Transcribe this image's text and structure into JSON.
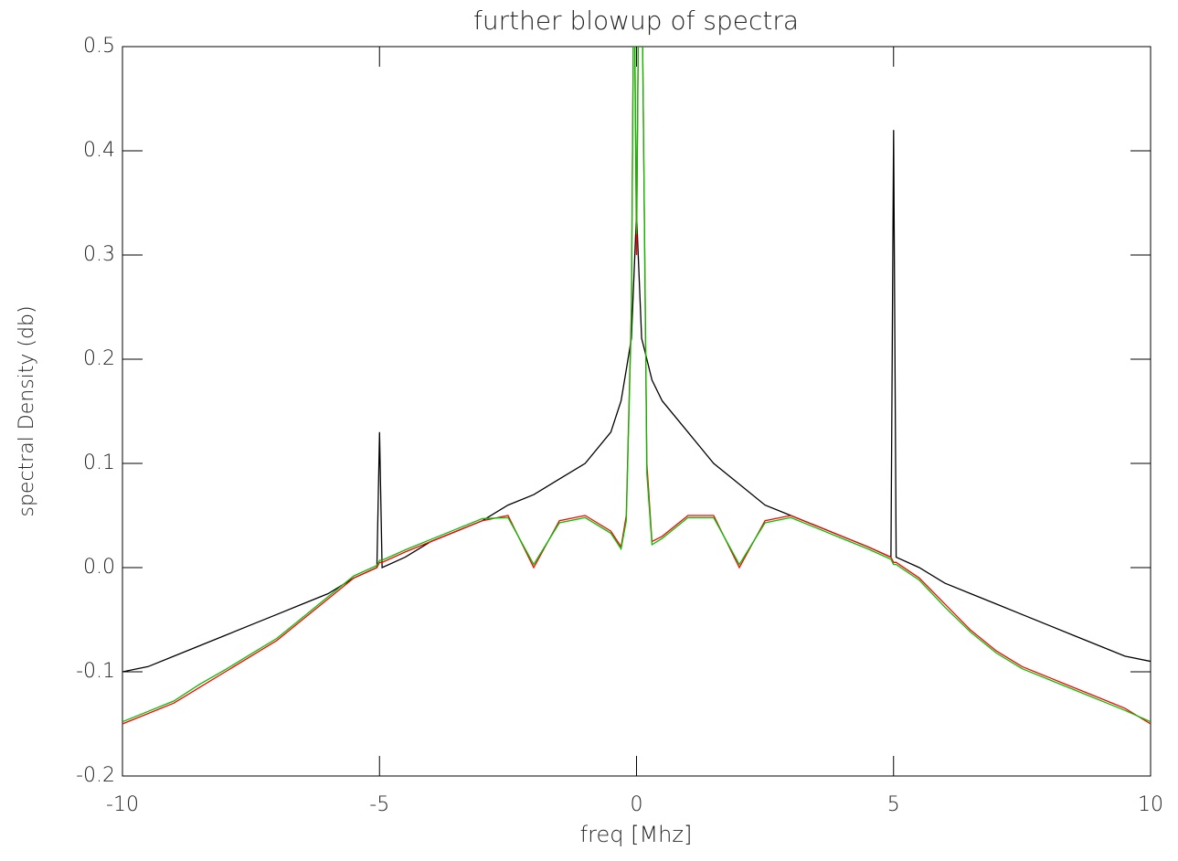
{
  "chart_data": {
    "type": "line",
    "title": "further blowup of spectra",
    "x_label": "freq [Mhz]",
    "y_label": "spectral Density (db)",
    "x": [
      -10,
      -9.5,
      -9,
      -8.5,
      -8,
      -7.5,
      -7,
      -6.5,
      -6,
      -5.5,
      -5.05,
      -5,
      -4.95,
      -4.5,
      -4,
      -3.5,
      -3,
      -2.5,
      -2,
      -1.5,
      -1,
      -0.5,
      -0.3,
      -0.2,
      -0.1,
      -0.05,
      0,
      0.05,
      0.1,
      0.2,
      0.3,
      0.5,
      1,
      1.5,
      2,
      2.5,
      3,
      3.5,
      4,
      4.5,
      4.95,
      5,
      5.05,
      5.5,
      6,
      6.5,
      7,
      7.5,
      8,
      8.5,
      9,
      9.5,
      10
    ],
    "series": [
      {
        "color": "#000000",
        "values": [
          -0.1,
          -0.095,
          -0.085,
          -0.075,
          -0.065,
          -0.055,
          -0.045,
          -0.035,
          -0.025,
          -0.01,
          0.0,
          0.13,
          0.0,
          0.01,
          0.025,
          0.035,
          0.045,
          0.06,
          0.07,
          0.085,
          0.1,
          0.13,
          0.16,
          0.19,
          0.22,
          0.28,
          0.34,
          0.28,
          0.22,
          0.2,
          0.18,
          0.16,
          0.13,
          0.1,
          0.08,
          0.06,
          0.05,
          0.04,
          0.03,
          0.02,
          0.01,
          0.42,
          0.01,
          0.0,
          -0.015,
          -0.025,
          -0.035,
          -0.045,
          -0.055,
          -0.065,
          -0.075,
          -0.085,
          -0.09
        ]
      },
      {
        "color": "#ff0000",
        "values": [
          -0.15,
          -0.14,
          -0.13,
          -0.115,
          -0.1,
          -0.085,
          -0.07,
          -0.05,
          -0.03,
          -0.01,
          0.0,
          0.005,
          0.005,
          0.015,
          0.025,
          0.035,
          0.045,
          0.05,
          0.0,
          0.045,
          0.05,
          0.035,
          0.02,
          0.05,
          0.25,
          0.6,
          0.3,
          0.6,
          0.6,
          0.1,
          0.025,
          0.03,
          0.05,
          0.05,
          0.0,
          0.045,
          0.05,
          0.04,
          0.03,
          0.02,
          0.01,
          0.005,
          0.005,
          -0.01,
          -0.035,
          -0.06,
          -0.08,
          -0.095,
          -0.105,
          -0.115,
          -0.125,
          -0.135,
          -0.15
        ]
      },
      {
        "color": "#00c000",
        "values": [
          -0.148,
          -0.138,
          -0.128,
          -0.112,
          -0.098,
          -0.083,
          -0.068,
          -0.048,
          -0.028,
          -0.008,
          0.002,
          0.007,
          0.007,
          0.017,
          0.027,
          0.037,
          0.047,
          0.048,
          0.003,
          0.043,
          0.048,
          0.033,
          0.018,
          0.045,
          0.24,
          0.6,
          0.32,
          0.6,
          0.6,
          0.09,
          0.022,
          0.028,
          0.048,
          0.048,
          0.003,
          0.043,
          0.048,
          0.038,
          0.028,
          0.018,
          0.008,
          0.003,
          0.003,
          -0.012,
          -0.038,
          -0.062,
          -0.082,
          -0.097,
          -0.107,
          -0.117,
          -0.127,
          -0.137,
          -0.148
        ]
      }
    ],
    "xlim": [
      -10,
      10
    ],
    "xticks": [
      -10,
      -5,
      0,
      5,
      10
    ],
    "ylim": [
      -0.2,
      0.5
    ],
    "yticks": [
      -0.2,
      -0.1,
      {
        "value": 0,
        "label": "0.0"
      },
      0.1,
      0.2,
      0.3,
      0.4,
      0.5
    ]
  }
}
